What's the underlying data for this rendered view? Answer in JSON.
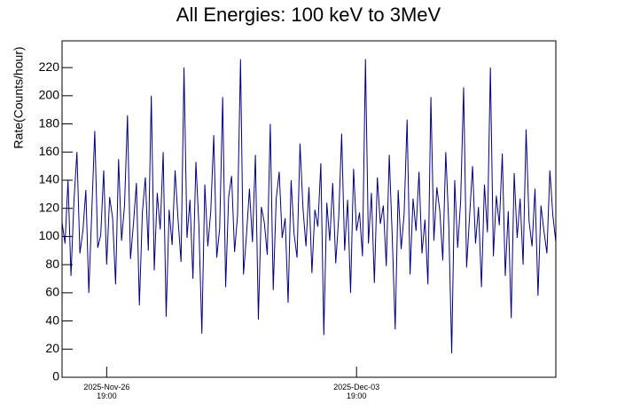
{
  "chart_data": {
    "type": "line",
    "title": "All Energies:  100 keV to 3MeV",
    "y_label": "Rate(Counts/hour)",
    "color": "#000080",
    "xlim": [
      0,
      332
    ],
    "xticks": [
      {
        "value": 30,
        "label": "2025-Nov-26 19:00"
      },
      {
        "value": 198,
        "label": "2025-Dec-03 19:00"
      }
    ],
    "ylim": [
      0,
      239
    ],
    "yticks": [
      0,
      20,
      40,
      60,
      80,
      100,
      120,
      140,
      160,
      180,
      200,
      220
    ],
    "x": [
      0,
      2,
      4,
      6,
      8,
      10,
      12,
      14,
      16,
      18,
      20,
      22,
      24,
      26,
      28,
      30,
      32,
      34,
      36,
      38,
      40,
      42,
      44,
      46,
      48,
      50,
      52,
      54,
      56,
      58,
      60,
      62,
      64,
      66,
      68,
      70,
      72,
      74,
      76,
      78,
      80,
      82,
      84,
      86,
      88,
      90,
      92,
      94,
      96,
      98,
      100,
      102,
      104,
      106,
      108,
      110,
      112,
      114,
      116,
      118,
      120,
      122,
      124,
      126,
      128,
      130,
      132,
      134,
      136,
      138,
      140,
      142,
      144,
      146,
      148,
      150,
      152,
      154,
      156,
      158,
      160,
      162,
      164,
      166,
      168,
      170,
      172,
      174,
      176,
      178,
      180,
      182,
      184,
      186,
      188,
      190,
      192,
      194,
      196,
      198,
      200,
      202,
      204,
      206,
      208,
      210,
      212,
      214,
      216,
      218,
      220,
      222,
      224,
      226,
      228,
      230,
      232,
      234,
      236,
      238,
      240,
      242,
      244,
      246,
      248,
      250,
      252,
      254,
      256,
      258,
      260,
      262,
      264,
      266,
      268,
      270,
      272,
      274,
      276,
      278,
      280,
      282,
      284,
      286,
      288,
      290,
      292,
      294,
      296,
      298,
      300,
      302,
      304,
      306,
      308,
      310,
      312,
      314,
      316,
      318,
      320,
      322,
      324,
      326,
      328,
      330,
      332
    ],
    "values": [
      110,
      95,
      140,
      72,
      125,
      160,
      88,
      104,
      133,
      60,
      118,
      175,
      92,
      101,
      147,
      80,
      128,
      113,
      66,
      155,
      97,
      122,
      186,
      84,
      109,
      138,
      51,
      117,
      142,
      90,
      200,
      76,
      131,
      105,
      160,
      43,
      119,
      94,
      147,
      112,
      82,
      220,
      99,
      126,
      70,
      153,
      108,
      31,
      137,
      93,
      118,
      172,
      85,
      106,
      199,
      64,
      128,
      143,
      89,
      115,
      226,
      73,
      101,
      134,
      96,
      158,
      41,
      121,
      110,
      87,
      180,
      62,
      127,
      146,
      99,
      113,
      53,
      140,
      102,
      85,
      166,
      120,
      93,
      135,
      74,
      119,
      107,
      152,
      30,
      124,
      97,
      138,
      81,
      113,
      173,
      90,
      126,
      60,
      148,
      104,
      117,
      86,
      226,
      95,
      131,
      67,
      142,
      109,
      122,
      79,
      158,
      100,
      34,
      133,
      91,
      116,
      183,
      73,
      127,
      104,
      146,
      88,
      112,
      66,
      199,
      97,
      135,
      118,
      83,
      160,
      109,
      17,
      140,
      92,
      125,
      206,
      78,
      114,
      150,
      95,
      121,
      64,
      137,
      103,
      220,
      86,
      129,
      108,
      159,
      72,
      118,
      42,
      145,
      99,
      127,
      80,
      176,
      111,
      93,
      134,
      58,
      122,
      104,
      88,
      147,
      115,
      96
    ]
  }
}
